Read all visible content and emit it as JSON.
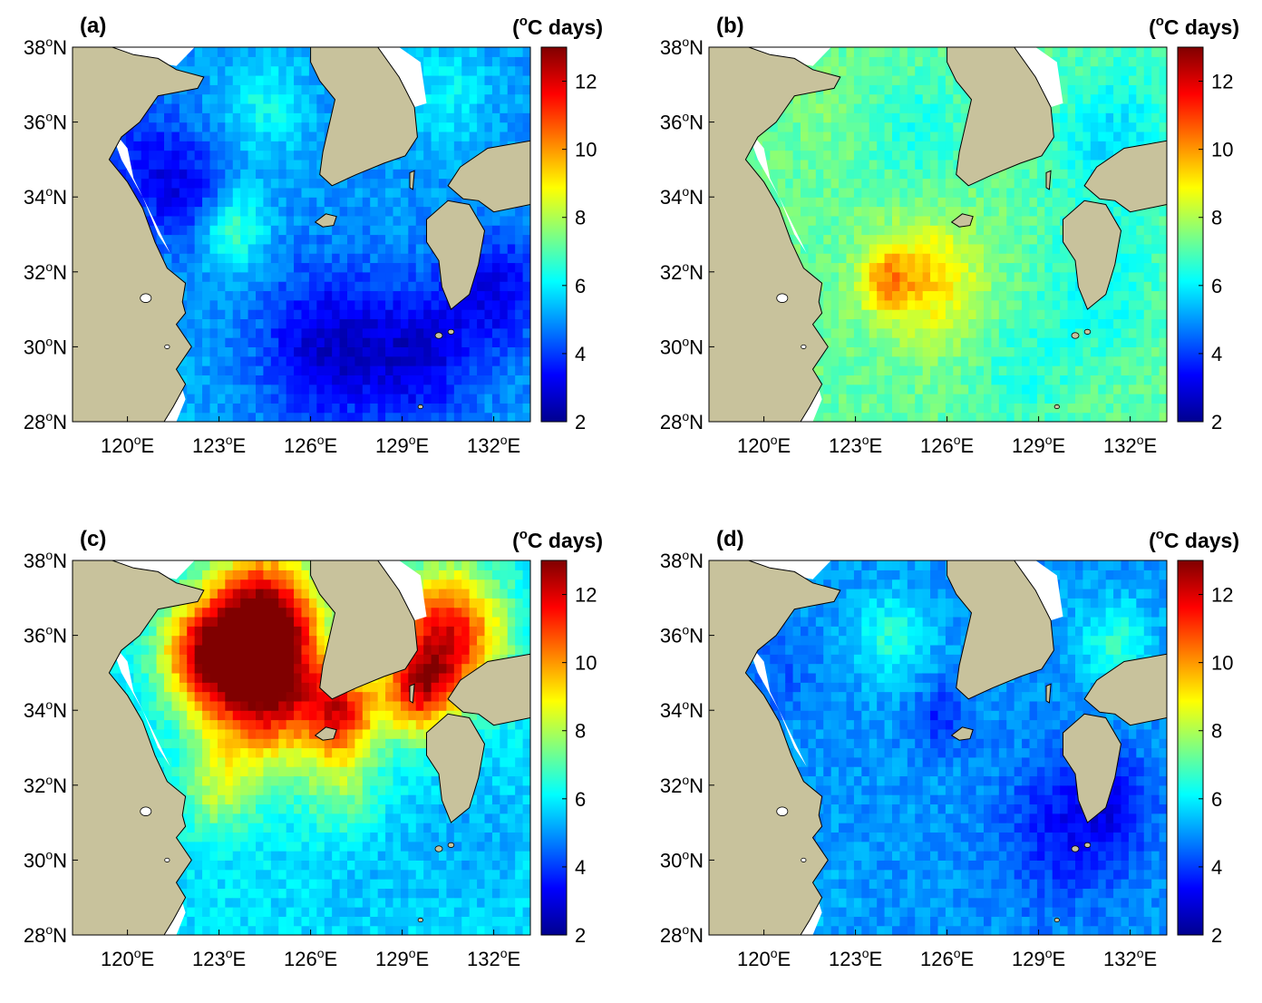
{
  "figure": {
    "colorbar": {
      "unit_label": "(°C days)",
      "unit_prefix": "(",
      "unit_sup": "o",
      "unit_suffix": "C days)",
      "ticks": [
        "2",
        "4",
        "6",
        "8",
        "10",
        "12"
      ],
      "tick_values": [
        2,
        4,
        6,
        8,
        10,
        12
      ],
      "range": [
        2,
        13
      ],
      "colormap": "jet",
      "stops": [
        "#00008f",
        "#0000ff",
        "#0080ff",
        "#00ffff",
        "#80ff80",
        "#ffff00",
        "#ff8000",
        "#ff0000",
        "#800000"
      ]
    },
    "axes": {
      "lat_ticks": [
        {
          "value": 38,
          "num": "38",
          "sup": "o",
          "dir": "N"
        },
        {
          "value": 36,
          "num": "36",
          "sup": "o",
          "dir": "N"
        },
        {
          "value": 34,
          "num": "34",
          "sup": "o",
          "dir": "N"
        },
        {
          "value": 32,
          "num": "32",
          "sup": "o",
          "dir": "N"
        },
        {
          "value": 30,
          "num": "30",
          "sup": "o",
          "dir": "N"
        },
        {
          "value": 28,
          "num": "28",
          "sup": "o",
          "dir": "N"
        }
      ],
      "lon_ticks": [
        {
          "value": 120,
          "num": "120",
          "sup": "o",
          "dir": "E"
        },
        {
          "value": 123,
          "num": "123",
          "sup": "o",
          "dir": "E"
        },
        {
          "value": 126,
          "num": "126",
          "sup": "o",
          "dir": "E"
        },
        {
          "value": 129,
          "num": "129",
          "sup": "o",
          "dir": "E"
        },
        {
          "value": 132,
          "num": "132",
          "sup": "o",
          "dir": "E"
        }
      ],
      "lon_range": [
        118.2,
        133.2
      ],
      "lat_range": [
        28,
        38
      ]
    },
    "colors": {
      "land": "#c8c29c",
      "coast": "#000000",
      "no_data": "#ffffff"
    },
    "panels": [
      {
        "label": "(a)",
        "background_value": 5.0,
        "features": [
          {
            "lon": 120.5,
            "lat": 35.0,
            "value": 3.8,
            "radius": 1.6
          },
          {
            "lon": 122.0,
            "lat": 34.0,
            "value": 3.5,
            "radius": 1.4
          },
          {
            "lon": 123.4,
            "lat": 33.2,
            "value": 7.0,
            "radius": 1.1
          },
          {
            "lon": 126.5,
            "lat": 30.0,
            "value": 2.8,
            "radius": 2.0
          },
          {
            "lon": 129.5,
            "lat": 29.8,
            "value": 3.0,
            "radius": 1.8
          },
          {
            "lon": 132.0,
            "lat": 31.5,
            "value": 3.2,
            "radius": 1.6
          },
          {
            "lon": 124.5,
            "lat": 36.5,
            "value": 6.2,
            "radius": 1.4
          },
          {
            "lon": 121.2,
            "lat": 28.5,
            "value": 5.5,
            "radius": 1.2
          },
          {
            "lon": 130.5,
            "lat": 36.8,
            "value": 6.0,
            "radius": 1.5
          }
        ]
      },
      {
        "label": "(b)",
        "background_value": 7.2,
        "features": [
          {
            "lon": 125.5,
            "lat": 31.8,
            "value": 9.2,
            "radius": 1.6
          },
          {
            "lon": 124.0,
            "lat": 31.8,
            "value": 9.5,
            "radius": 0.9
          },
          {
            "lon": 131.5,
            "lat": 35.5,
            "value": 5.8,
            "radius": 2.0
          },
          {
            "lon": 131.0,
            "lat": 31.5,
            "value": 6.2,
            "radius": 1.8
          },
          {
            "lon": 125.0,
            "lat": 35.8,
            "value": 6.4,
            "radius": 1.5
          },
          {
            "lon": 122.0,
            "lat": 36.5,
            "value": 7.4,
            "radius": 1.2
          },
          {
            "lon": 128.5,
            "lat": 29.2,
            "value": 6.5,
            "radius": 1.6
          }
        ]
      },
      {
        "label": "(c)",
        "background_value": 5.8,
        "features": [
          {
            "lon": 124.5,
            "lat": 36.5,
            "value": 12.5,
            "radius": 1.8
          },
          {
            "lon": 124.5,
            "lat": 34.5,
            "value": 11.8,
            "radius": 1.8
          },
          {
            "lon": 122.5,
            "lat": 35.5,
            "value": 10.8,
            "radius": 1.5
          },
          {
            "lon": 127.0,
            "lat": 34.0,
            "value": 10.8,
            "radius": 1.2
          },
          {
            "lon": 130.5,
            "lat": 36.0,
            "value": 11.8,
            "radius": 1.8
          },
          {
            "lon": 129.5,
            "lat": 34.5,
            "value": 10.0,
            "radius": 1.2
          },
          {
            "lon": 123.0,
            "lat": 32.0,
            "value": 8.0,
            "radius": 1.3
          },
          {
            "lon": 127.0,
            "lat": 32.0,
            "value": 7.6,
            "radius": 1.4
          },
          {
            "lon": 128.0,
            "lat": 30.0,
            "value": 5.4,
            "radius": 2.0
          },
          {
            "lon": 131.5,
            "lat": 30.5,
            "value": 5.2,
            "radius": 1.6
          }
        ]
      },
      {
        "label": "(d)",
        "background_value": 5.0,
        "features": [
          {
            "lon": 129.8,
            "lat": 30.8,
            "value": 3.6,
            "radius": 2.0
          },
          {
            "lon": 131.5,
            "lat": 31.5,
            "value": 3.8,
            "radius": 1.4
          },
          {
            "lon": 125.8,
            "lat": 33.8,
            "value": 3.8,
            "radius": 0.9
          },
          {
            "lon": 124.2,
            "lat": 36.0,
            "value": 6.5,
            "radius": 1.2
          },
          {
            "lon": 131.5,
            "lat": 35.8,
            "value": 6.5,
            "radius": 1.2
          },
          {
            "lon": 120.5,
            "lat": 35.0,
            "value": 4.4,
            "radius": 1.2
          },
          {
            "lon": 121.5,
            "lat": 28.8,
            "value": 5.4,
            "radius": 1.2
          }
        ]
      }
    ]
  }
}
